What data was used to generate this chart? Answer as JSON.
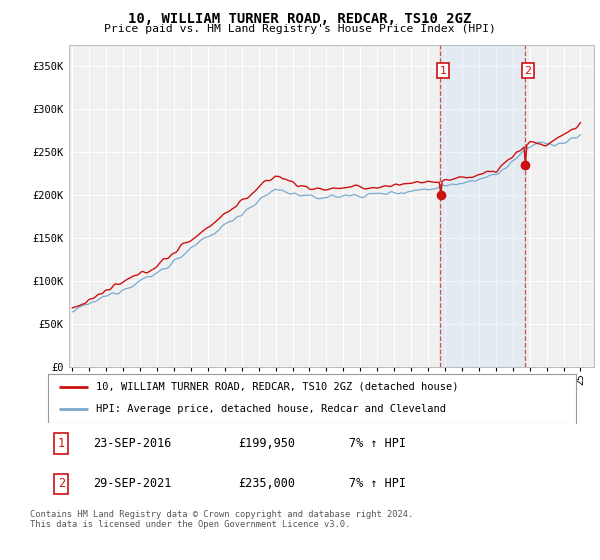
{
  "title": "10, WILLIAM TURNER ROAD, REDCAR, TS10 2GZ",
  "subtitle": "Price paid vs. HM Land Registry's House Price Index (HPI)",
  "ylabel_ticks": [
    "£0",
    "£50K",
    "£100K",
    "£150K",
    "£200K",
    "£250K",
    "£300K",
    "£350K"
  ],
  "ytick_vals": [
    0,
    50000,
    100000,
    150000,
    200000,
    250000,
    300000,
    350000
  ],
  "ylim": [
    0,
    375000
  ],
  "xlim_start": 1994.8,
  "xlim_end": 2025.8,
  "hpi_color": "#7aaad0",
  "price_color": "#cc1111",
  "marker1_date": 2016.73,
  "marker2_date": 2021.75,
  "marker1_price": 199950,
  "marker2_price": 235000,
  "sale1_text": "23-SEP-2016",
  "sale1_price": "£199,950",
  "sale1_hpi": "7% ↑ HPI",
  "sale2_text": "29-SEP-2021",
  "sale2_price": "£235,000",
  "sale2_hpi": "7% ↑ HPI",
  "legend_line1": "10, WILLIAM TURNER ROAD, REDCAR, TS10 2GZ (detached house)",
  "legend_line2": "HPI: Average price, detached house, Redcar and Cleveland",
  "footnote": "Contains HM Land Registry data © Crown copyright and database right 2024.\nThis data is licensed under the Open Government Licence v3.0.",
  "bg_color": "#ffffff",
  "plot_bg_color": "#f0f0f0",
  "grid_color": "#ffffff",
  "shade_color": "#cce0f5"
}
